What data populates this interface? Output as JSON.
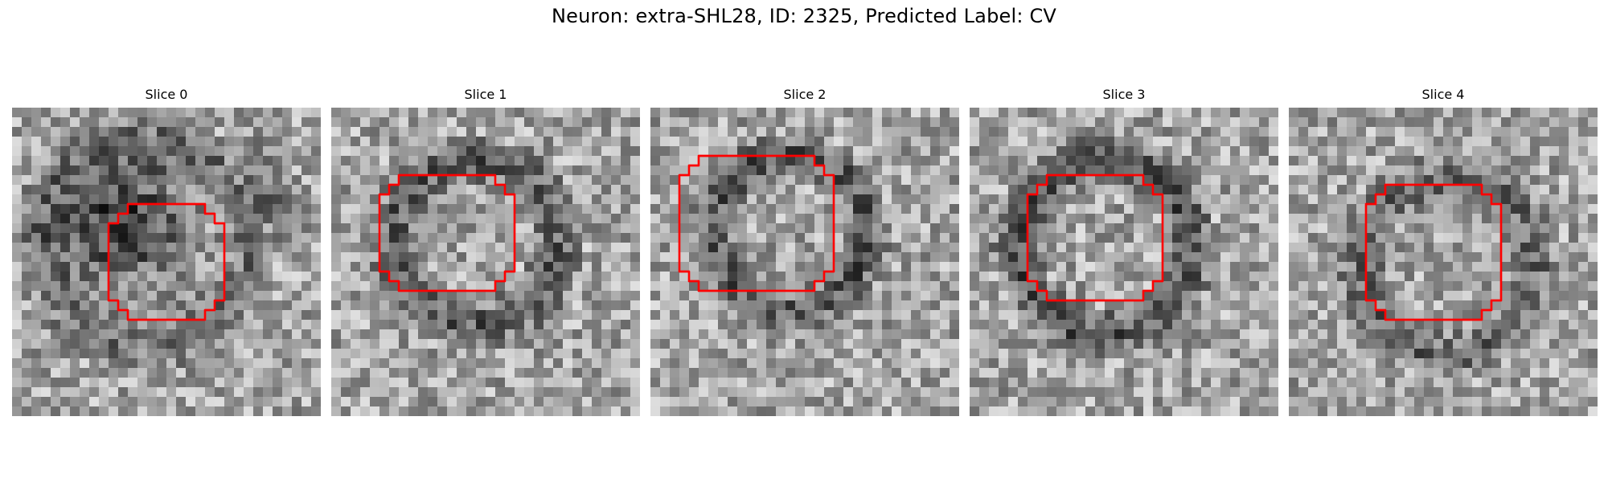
{
  "figure": {
    "title": "Neuron: extra-SHL28, ID: 2325, Predicted Label: CV"
  },
  "colors": {
    "contour": "#ff0000",
    "colormap": "gray"
  },
  "panels": [
    {
      "title": "Slice 0",
      "icon": "microscopy-slice-image"
    },
    {
      "title": "Slice 1",
      "icon": "microscopy-slice-image"
    },
    {
      "title": "Slice 2",
      "icon": "microscopy-slice-image"
    },
    {
      "title": "Slice 3",
      "icon": "microscopy-slice-image"
    },
    {
      "title": "Slice 4",
      "icon": "microscopy-slice-image"
    }
  ]
}
